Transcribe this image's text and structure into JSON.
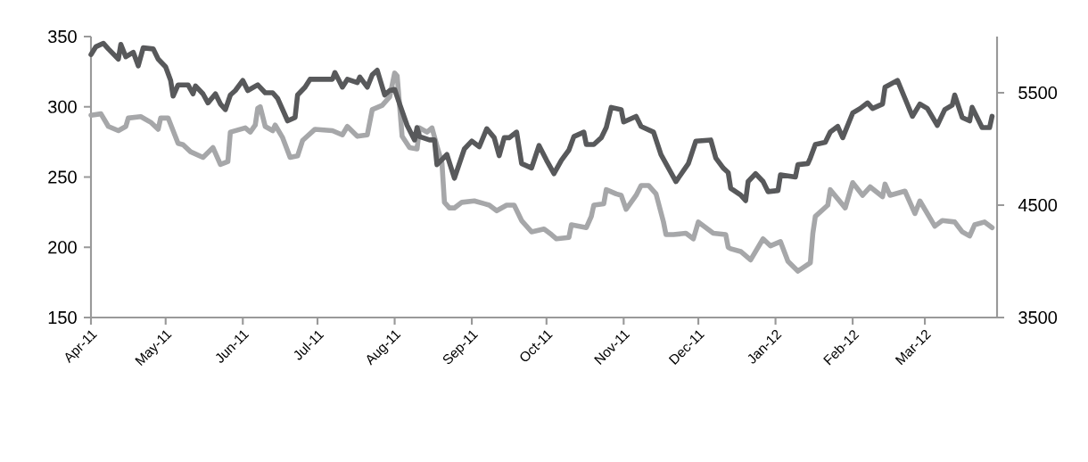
{
  "chart_data": {
    "type": "line",
    "xlim": [
      "2011-04-01",
      "2012-03-30"
    ],
    "xticks": [
      {
        "value": "2011-04-01",
        "label": "Apr-11"
      },
      {
        "value": "2011-05-01",
        "label": "May-11"
      },
      {
        "value": "2011-06-01",
        "label": "Jun-11"
      },
      {
        "value": "2011-07-01",
        "label": "Jul-11"
      },
      {
        "value": "2011-08-01",
        "label": "Aug-11"
      },
      {
        "value": "2011-09-01",
        "label": "Sep-11"
      },
      {
        "value": "2011-10-01",
        "label": "Oct-11"
      },
      {
        "value": "2011-11-01",
        "label": "Nov-11"
      },
      {
        "value": "2011-12-01",
        "label": "Dec-11"
      },
      {
        "value": "2012-01-01",
        "label": "Jan-12"
      },
      {
        "value": "2012-02-01",
        "label": "Feb-12"
      },
      {
        "value": "2012-03-01",
        "label": "Mar-12"
      }
    ],
    "ylim": [
      150,
      350
    ],
    "yticks": [
      150,
      200,
      250,
      300,
      350
    ],
    "y2lim": [
      3500,
      6000
    ],
    "y2ticks": [
      3500,
      4500,
      5500
    ],
    "series": [
      {
        "color": "#a6a7a9",
        "x": [
          "2011-04-01",
          "2011-04-05",
          "2011-04-08",
          "2011-04-12",
          "2011-04-15",
          "2011-04-16",
          "2011-04-21",
          "2011-04-25",
          "2011-04-28",
          "2011-04-29",
          "2011-05-02",
          "2011-05-06",
          "2011-05-08",
          "2011-05-11",
          "2011-05-16",
          "2011-05-20",
          "2011-05-23",
          "2011-05-26",
          "2011-05-27",
          "2011-06-02",
          "2011-06-04",
          "2011-06-06",
          "2011-06-07",
          "2011-06-08",
          "2011-06-10",
          "2011-06-13",
          "2011-06-14",
          "2011-06-17",
          "2011-06-20",
          "2011-06-23",
          "2011-06-25",
          "2011-06-30",
          "2011-07-07",
          "2011-07-11",
          "2011-07-13",
          "2011-07-17",
          "2011-07-21",
          "2011-07-23",
          "2011-07-27",
          "2011-07-30",
          "2011-08-01",
          "2011-08-02",
          "2011-08-04",
          "2011-08-07",
          "2011-08-10",
          "2011-08-11",
          "2011-08-14",
          "2011-08-16",
          "2011-08-18",
          "2011-08-20",
          "2011-08-21",
          "2011-08-23",
          "2011-08-25",
          "2011-08-28",
          "2011-09-02",
          "2011-09-06",
          "2011-09-08",
          "2011-09-11",
          "2011-09-15",
          "2011-09-18",
          "2011-09-21",
          "2011-09-25",
          "2011-09-30",
          "2011-10-03",
          "2011-10-05",
          "2011-10-10",
          "2011-10-11",
          "2011-10-17",
          "2011-10-19",
          "2011-10-20",
          "2011-10-24",
          "2011-10-25",
          "2011-10-29",
          "2011-10-31",
          "2011-11-02",
          "2011-11-06",
          "2011-11-08",
          "2011-11-11",
          "2011-11-14",
          "2011-11-17",
          "2011-11-18",
          "2011-11-21",
          "2011-11-26",
          "2011-11-29",
          "2011-12-01",
          "2011-12-07",
          "2011-12-12",
          "2011-12-13",
          "2011-12-14",
          "2011-12-18",
          "2011-12-22",
          "2011-12-26",
          "2011-12-27",
          "2011-12-30",
          "2012-01-03",
          "2012-01-06",
          "2012-01-10",
          "2012-01-15",
          "2012-01-16",
          "2012-01-17",
          "2012-01-22",
          "2012-01-23",
          "2012-01-29",
          "2012-02-01",
          "2012-02-05",
          "2012-02-08",
          "2012-02-13",
          "2012-02-14",
          "2012-02-16",
          "2012-02-22",
          "2012-02-26",
          "2012-02-28",
          "2012-03-05",
          "2012-03-08",
          "2012-03-13",
          "2012-03-16",
          "2012-03-19",
          "2012-03-21",
          "2012-03-25",
          "2012-03-28"
        ],
        "values": [
          294,
          295,
          286,
          283,
          286,
          292,
          293,
          289,
          284,
          292,
          292,
          274,
          273,
          268,
          264,
          271,
          259,
          261,
          282,
          285,
          282,
          287,
          299,
          300,
          286,
          283,
          287,
          278,
          264,
          265,
          276,
          284,
          283,
          280,
          286,
          279,
          280,
          298,
          301,
          307,
          324,
          322,
          279,
          271,
          270,
          285,
          282,
          285,
          272,
          260,
          232,
          228,
          228,
          232,
          233,
          231,
          230,
          226,
          230,
          230,
          219,
          211,
          213,
          209,
          206,
          207,
          216,
          214,
          222,
          230,
          231,
          241,
          238,
          237,
          227,
          237,
          244,
          244,
          238,
          218,
          209,
          209,
          210,
          206,
          218,
          210,
          209,
          200,
          199,
          197,
          191,
          203,
          206,
          201,
          204,
          190,
          183,
          189,
          210,
          222,
          230,
          241,
          228,
          246,
          237,
          243,
          236,
          245,
          237,
          240,
          224,
          233,
          215,
          219,
          218,
          211,
          208,
          216,
          218,
          214
        ]
      },
      {
        "color": "#58595b",
        "axis": "y2",
        "x": [
          "2011-04-01",
          "2011-04-03",
          "2011-04-06",
          "2011-04-08",
          "2011-04-12",
          "2011-04-13",
          "2011-04-15",
          "2011-04-18",
          "2011-04-20",
          "2011-04-22",
          "2011-04-26",
          "2011-04-28",
          "2011-05-01",
          "2011-05-03",
          "2011-05-04",
          "2011-05-06",
          "2011-05-10",
          "2011-05-12",
          "2011-05-13",
          "2011-05-16",
          "2011-05-18",
          "2011-05-21",
          "2011-05-23",
          "2011-05-25",
          "2011-05-27",
          "2011-05-29",
          "2011-06-01",
          "2011-06-03",
          "2011-06-07",
          "2011-06-10",
          "2011-06-13",
          "2011-06-15",
          "2011-06-17",
          "2011-06-19",
          "2011-06-22",
          "2011-06-23",
          "2011-06-26",
          "2011-06-28",
          "2011-07-07",
          "2011-07-08",
          "2011-07-11",
          "2011-07-13",
          "2011-07-17",
          "2011-07-18",
          "2011-07-21",
          "2011-07-23",
          "2011-07-25",
          "2011-07-28",
          "2011-07-30",
          "2011-08-01",
          "2011-08-03",
          "2011-08-06",
          "2011-08-09",
          "2011-08-10",
          "2011-08-11",
          "2011-08-15",
          "2011-08-17",
          "2011-08-18",
          "2011-08-22",
          "2011-08-25",
          "2011-08-29",
          "2011-09-01",
          "2011-09-04",
          "2011-09-07",
          "2011-09-10",
          "2011-09-12",
          "2011-09-14",
          "2011-09-16",
          "2011-09-19",
          "2011-09-21",
          "2011-09-25",
          "2011-09-28",
          "2011-10-01",
          "2011-10-04",
          "2011-10-07",
          "2011-10-10",
          "2011-10-12",
          "2011-10-16",
          "2011-10-17",
          "2011-10-20",
          "2011-10-23",
          "2011-10-25",
          "2011-10-27",
          "2011-10-31",
          "2011-11-01",
          "2011-11-06",
          "2011-11-08",
          "2011-11-13",
          "2011-11-16",
          "2011-11-19",
          "2011-11-22",
          "2011-11-27",
          "2011-11-30",
          "2011-12-06",
          "2011-12-08",
          "2011-12-11",
          "2011-12-13",
          "2011-12-14",
          "2011-12-18",
          "2011-12-20",
          "2011-12-21",
          "2011-12-24",
          "2011-12-27",
          "2011-12-29",
          "2012-01-02",
          "2012-01-03",
          "2012-01-09",
          "2012-01-10",
          "2012-01-14",
          "2012-01-15",
          "2012-01-17",
          "2012-01-21",
          "2012-01-23",
          "2012-01-26",
          "2012-01-28",
          "2012-02-01",
          "2012-02-04",
          "2012-02-07",
          "2012-02-09",
          "2012-02-13",
          "2012-02-14",
          "2012-02-19",
          "2012-02-22",
          "2012-02-25",
          "2012-02-28",
          "2012-03-02",
          "2012-03-06",
          "2012-03-09",
          "2012-03-12",
          "2012-03-13",
          "2012-03-16",
          "2012-03-19",
          "2012-03-20",
          "2012-03-24",
          "2012-03-27",
          "2012-03-28"
        ],
        "values": [
          5840,
          5910,
          5940,
          5890,
          5800,
          5930,
          5820,
          5860,
          5740,
          5900,
          5890,
          5800,
          5730,
          5610,
          5470,
          5570,
          5570,
          5490,
          5560,
          5490,
          5410,
          5490,
          5400,
          5350,
          5480,
          5520,
          5610,
          5520,
          5570,
          5500,
          5500,
          5450,
          5350,
          5250,
          5280,
          5480,
          5550,
          5620,
          5620,
          5680,
          5550,
          5620,
          5590,
          5640,
          5550,
          5660,
          5700,
          5480,
          5520,
          5530,
          5400,
          5210,
          5080,
          5190,
          5110,
          5080,
          5080,
          4860,
          4950,
          4740,
          5000,
          5070,
          5020,
          5180,
          5100,
          4940,
          5100,
          5100,
          5150,
          4870,
          4830,
          5030,
          4900,
          4780,
          4900,
          4990,
          5110,
          5150,
          5040,
          5040,
          5100,
          5190,
          5370,
          5350,
          5240,
          5290,
          5200,
          5150,
          4950,
          4830,
          4710,
          4870,
          5070,
          5080,
          4920,
          4830,
          4790,
          4650,
          4590,
          4540,
          4710,
          4780,
          4710,
          4620,
          4630,
          4770,
          4750,
          4860,
          4870,
          4920,
          5040,
          5060,
          5150,
          5200,
          5100,
          5320,
          5360,
          5410,
          5360,
          5400,
          5550,
          5610,
          5450,
          5290,
          5400,
          5360,
          5210,
          5350,
          5390,
          5480,
          5280,
          5250,
          5370,
          5190,
          5190,
          5290
        ]
      }
    ]
  }
}
